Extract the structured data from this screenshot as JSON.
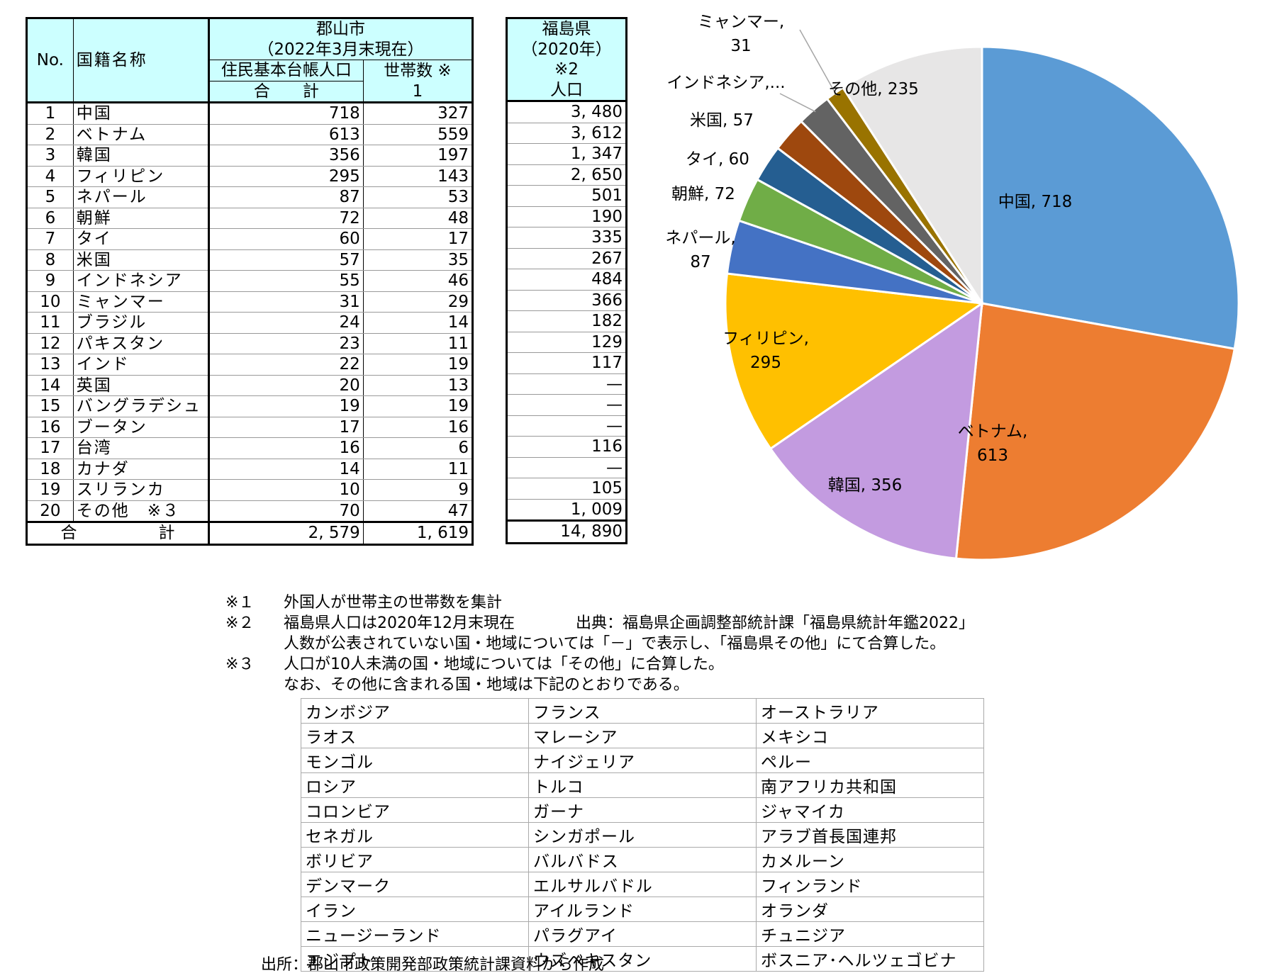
{
  "table_koriyama": {
    "h_no": "No.",
    "h_name": "国籍名称",
    "h_city": "郡山市",
    "h_date": "（2022年3月末現在）",
    "h_pop": "住民基本台帳人口",
    "h_pop_sub": "合　　計",
    "h_hh": "世帯数 ※",
    "h_hh_sub": "1",
    "rows": [
      {
        "no": "1",
        "name": "中国",
        "pop": "718",
        "hh": "327"
      },
      {
        "no": "2",
        "name": "ベトナム",
        "pop": "613",
        "hh": "559"
      },
      {
        "no": "3",
        "name": "韓国",
        "pop": "356",
        "hh": "197"
      },
      {
        "no": "4",
        "name": "フィリピン",
        "pop": "295",
        "hh": "143"
      },
      {
        "no": "5",
        "name": "ネパール",
        "pop": "87",
        "hh": "53"
      },
      {
        "no": "6",
        "name": "朝鮮",
        "pop": "72",
        "hh": "48"
      },
      {
        "no": "7",
        "name": "タイ",
        "pop": "60",
        "hh": "17"
      },
      {
        "no": "8",
        "name": "米国",
        "pop": "57",
        "hh": "35"
      },
      {
        "no": "9",
        "name": "インドネシア",
        "pop": "55",
        "hh": "46"
      },
      {
        "no": "10",
        "name": "ミャンマー",
        "pop": "31",
        "hh": "29"
      },
      {
        "no": "11",
        "name": "ブラジル",
        "pop": "24",
        "hh": "14"
      },
      {
        "no": "12",
        "name": "パキスタン",
        "pop": "23",
        "hh": "11"
      },
      {
        "no": "13",
        "name": "インド",
        "pop": "22",
        "hh": "19"
      },
      {
        "no": "14",
        "name": "英国",
        "pop": "20",
        "hh": "13"
      },
      {
        "no": "15",
        "name": "バングラデシュ",
        "pop": "19",
        "hh": "19"
      },
      {
        "no": "16",
        "name": "ブータン",
        "pop": "17",
        "hh": "16"
      },
      {
        "no": "17",
        "name": "台湾",
        "pop": "16",
        "hh": "6"
      },
      {
        "no": "18",
        "name": "カナダ",
        "pop": "14",
        "hh": "11"
      },
      {
        "no": "19",
        "name": "スリランカ",
        "pop": "10",
        "hh": "9"
      },
      {
        "no": "20",
        "name": "その他　※３",
        "pop": "70",
        "hh": "47"
      }
    ],
    "total_label": "合　　　　　計",
    "total_pop": "2, 579",
    "total_hh": "1, 619"
  },
  "table_fukushima": {
    "h1": "福島県",
    "h2": "（2020年）",
    "h3": "※2",
    "h4": "人口",
    "rows": [
      "3, 480",
      "3, 612",
      "1, 347",
      "2, 650",
      "501",
      "190",
      "335",
      "267",
      "484",
      "366",
      "182",
      "129",
      "117",
      "—",
      "—",
      "—",
      "116",
      "—",
      "105",
      "1, 009"
    ],
    "total": "14, 890"
  },
  "chart_data": {
    "type": "pie",
    "start": "12 o'clock, clockwise",
    "slices": [
      {
        "label": "中国",
        "value": 718,
        "color": "#5b9bd5",
        "display": "中国, 718"
      },
      {
        "label": "ベトナム",
        "value": 613,
        "color": "#ed7d31",
        "display": "ベトナム, 613"
      },
      {
        "label": "韓国",
        "value": 356,
        "color": "#c39be0",
        "display": "韓国, 356"
      },
      {
        "label": "フィリピン",
        "value": 295,
        "color": "#ffc000",
        "display": "フィリピン, 295"
      },
      {
        "label": "ネパール",
        "value": 87,
        "color": "#4472c4",
        "display": "ネパール, 87"
      },
      {
        "label": "朝鮮",
        "value": 72,
        "color": "#70ad47",
        "display": "朝鮮, 72"
      },
      {
        "label": "タイ",
        "value": 60,
        "color": "#255e91",
        "display": "タイ, 60"
      },
      {
        "label": "米国",
        "value": 57,
        "color": "#9e480e",
        "display": "米国, 57"
      },
      {
        "label": "インドネシア",
        "value": 55,
        "color": "#636363",
        "display": "インドネシア,..."
      },
      {
        "label": "ミャンマー",
        "value": 31,
        "color": "#997300",
        "display": "ミャンマー, 31"
      },
      {
        "label": "その他",
        "value": 235,
        "color": "#e7e6e6",
        "display": "その他, 235"
      }
    ]
  },
  "notes": {
    "n1_mark": "※１",
    "n1_text": "外国人が世帯主の世帯数を集計",
    "n2_mark": "※２",
    "n2_text": "福島県人口は2020年12月末現在",
    "n2_source": "出典：福島県企画調整部統計課「福島県統計年鑑2022」",
    "n2_text2": "人数が公表されていない国・地域については「－」で表示し、「福島県その他」にて合算した。",
    "n3_mark": "※３",
    "n3_text": "人口が10人未満の国・地域については「その他」に合算した。",
    "n3_text2": "なお、その他に含まれる国・地域は下記のとおりである。"
  },
  "others_table": [
    [
      "カンボジア",
      "フランス",
      "オーストラリア"
    ],
    [
      "ラオス",
      "マレーシア",
      "メキシコ"
    ],
    [
      "モンゴル",
      "ナイジェリア",
      "ペルー"
    ],
    [
      "ロシア",
      "トルコ",
      "南アフリカ共和国"
    ],
    [
      "コロンビア",
      "ガーナ",
      "ジャマイカ"
    ],
    [
      "セネガル",
      "シンガポール",
      "アラブ首長国連邦"
    ],
    [
      "ボリビア",
      "バルバドス",
      "カメルーン"
    ],
    [
      "デンマーク",
      "エルサルバドル",
      "フィンランド"
    ],
    [
      "イラン",
      "アイルランド",
      "オランダ"
    ],
    [
      "ニュージーランド",
      "パラグアイ",
      "チュニジア"
    ],
    [
      "エジプト",
      "ウズベキスタン",
      "ボスニア･ヘルツェゴビナ"
    ]
  ],
  "footer": "出所：郡山市政策開発部政策統計課資料から作成"
}
